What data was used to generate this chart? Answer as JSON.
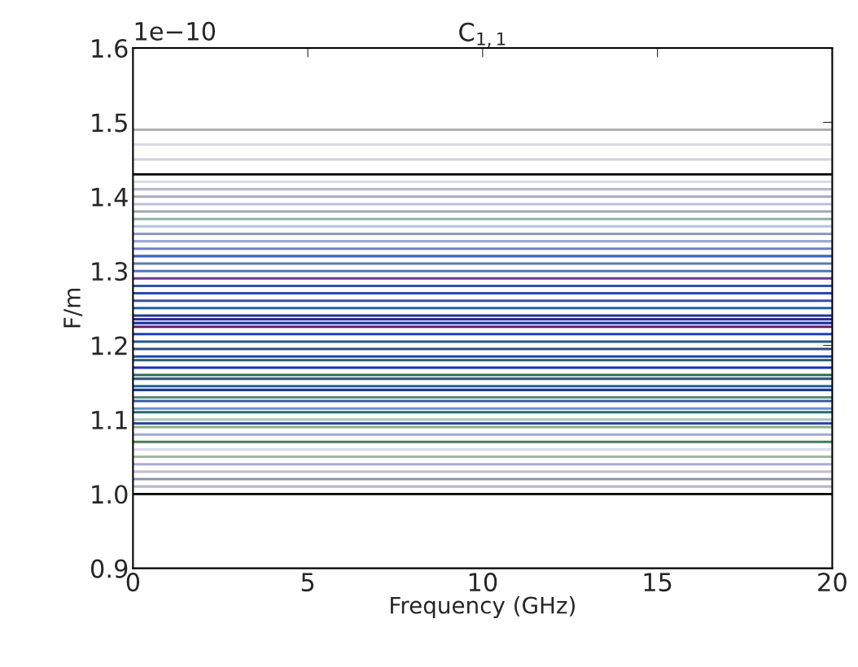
{
  "chart_data": {
    "type": "line",
    "title": "C$_{1,1}$",
    "xlabel": "Frequency (GHz)",
    "ylabel": "F/m",
    "annotations": [
      "1e−10"
    ],
    "x": [
      0,
      20
    ],
    "xlim": [
      0,
      20
    ],
    "xticks": [
      0,
      5,
      10,
      15,
      20
    ],
    "ylim": [
      0.9,
      1.6
    ],
    "yticks": [
      0.9,
      {
        "value": 1,
        "label": "1.0"
      },
      1.1,
      1.2,
      1.3,
      1.4,
      1.5,
      1.6
    ],
    "grid": false,
    "legend": false,
    "marker": "none",
    "line_style": "solid",
    "ref_lines": [
      {
        "axis": "y",
        "value": 1.43,
        "color": "#000000"
      },
      {
        "axis": "y",
        "value": 1.0,
        "color": "#000000"
      }
    ],
    "series": [
      {
        "color": "#b0b0b0",
        "values": [
          1.49,
          1.49
        ]
      },
      {
        "color": "#d8d8e8",
        "values": [
          1.47,
          1.47
        ]
      },
      {
        "color": "#d0d0e0",
        "values": [
          1.45,
          1.45
        ]
      },
      {
        "color": "#d8dce8",
        "values": [
          1.42,
          1.42
        ]
      },
      {
        "color": "#b8b8d0",
        "values": [
          1.41,
          1.41
        ]
      },
      {
        "color": "#a8a8c0",
        "values": [
          1.4,
          1.4
        ]
      },
      {
        "color": "#c0c0d8",
        "values": [
          1.39,
          1.39
        ]
      },
      {
        "color": "#a0a8b0",
        "values": [
          1.38,
          1.38
        ]
      },
      {
        "color": "#90b0a0",
        "values": [
          1.37,
          1.37
        ]
      },
      {
        "color": "#b8c0d8",
        "values": [
          1.36,
          1.36
        ]
      },
      {
        "color": "#9098c8",
        "values": [
          1.35,
          1.35
        ]
      },
      {
        "color": "#a0a8d8",
        "values": [
          1.34,
          1.34
        ]
      },
      {
        "color": "#7080c8",
        "values": [
          1.33,
          1.33
        ]
      },
      {
        "color": "#4060c0",
        "values": [
          1.32,
          1.32
        ]
      },
      {
        "color": "#6078b0",
        "values": [
          1.31,
          1.31
        ]
      },
      {
        "color": "#5070c0",
        "values": [
          1.3,
          1.3
        ]
      },
      {
        "color": "#6a3a8a",
        "values": [
          1.29,
          1.29
        ]
      },
      {
        "color": "#3050b0",
        "values": [
          1.28,
          1.28
        ]
      },
      {
        "color": "#2a4aa8",
        "values": [
          1.27,
          1.27
        ]
      },
      {
        "color": "#3a5098",
        "values": [
          1.26,
          1.26
        ]
      },
      {
        "color": "#1f5fa8",
        "values": [
          1.25,
          1.25
        ]
      },
      {
        "color": "#203a90",
        "values": [
          1.24,
          1.24
        ]
      },
      {
        "color": "#2a2a9a",
        "values": [
          1.235,
          1.235
        ]
      },
      {
        "color": "#1530b0",
        "values": [
          1.23,
          1.23
        ]
      },
      {
        "color": "#6a1a6a",
        "values": [
          1.225,
          1.225
        ]
      },
      {
        "color": "#1a40c0",
        "values": [
          1.215,
          1.215
        ]
      },
      {
        "color": "#205a90",
        "values": [
          1.205,
          1.205
        ]
      },
      {
        "color": "#304a80",
        "values": [
          1.195,
          1.195
        ]
      },
      {
        "color": "#1a4aa0",
        "values": [
          1.185,
          1.185
        ]
      },
      {
        "color": "#2a5a7a",
        "values": [
          1.18,
          1.18
        ]
      },
      {
        "color": "#1530c0",
        "values": [
          1.17,
          1.17
        ]
      },
      {
        "color": "#2a6a5a",
        "values": [
          1.16,
          1.16
        ]
      },
      {
        "color": "#3a5a80",
        "values": [
          1.155,
          1.155
        ]
      },
      {
        "color": "#2060a0",
        "values": [
          1.145,
          1.145
        ]
      },
      {
        "color": "#1a3aa0",
        "values": [
          1.14,
          1.14
        ]
      },
      {
        "color": "#5a8a7a",
        "values": [
          1.13,
          1.13
        ]
      },
      {
        "color": "#3a5aa0",
        "values": [
          1.125,
          1.125
        ]
      },
      {
        "color": "#6a90c8",
        "values": [
          1.115,
          1.115
        ]
      },
      {
        "color": "#2a6a6a",
        "values": [
          1.11,
          1.11
        ]
      },
      {
        "color": "#a8c8c0",
        "values": [
          1.1,
          1.1
        ]
      },
      {
        "color": "#2a4aa0",
        "values": [
          1.095,
          1.095
        ]
      },
      {
        "color": "#90b090",
        "values": [
          1.09,
          1.09
        ]
      },
      {
        "color": "#a0a8d8",
        "values": [
          1.08,
          1.08
        ]
      },
      {
        "color": "#4a7a5a",
        "values": [
          1.07,
          1.07
        ]
      },
      {
        "color": "#d8dce8",
        "values": [
          1.06,
          1.06
        ]
      },
      {
        "color": "#a0b8a0",
        "values": [
          1.05,
          1.05
        ]
      },
      {
        "color": "#a8a8d8",
        "values": [
          1.04,
          1.04
        ]
      },
      {
        "color": "#c0c0c8",
        "values": [
          1.03,
          1.03
        ]
      },
      {
        "color": "#9090b0",
        "values": [
          1.02,
          1.02
        ]
      },
      {
        "color": "#b8b8d0",
        "values": [
          1.01,
          1.01
        ]
      }
    ]
  }
}
